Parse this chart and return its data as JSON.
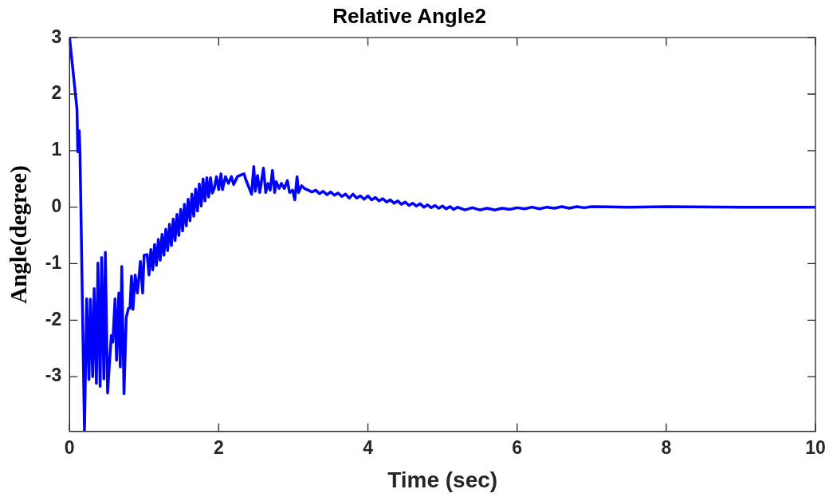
{
  "chart_data": {
    "type": "line",
    "title": "Relative Angle2",
    "xlabel": "Time (sec)",
    "ylabel": "Angle(degree)",
    "xlim": [
      0,
      10
    ],
    "ylim": [
      -3.97,
      3
    ],
    "xticks": [
      0,
      2,
      4,
      6,
      8,
      10
    ],
    "yticks": [
      -3,
      -2,
      -1,
      0,
      1,
      2,
      3
    ],
    "grid": false,
    "legend": false,
    "marker": "none",
    "line_style": "solid",
    "series": [
      {
        "color": "#0000ff",
        "x": [
          0,
          0.1,
          0.11,
          0.13,
          0.14,
          0.2,
          0.23,
          0.26,
          0.28,
          0.31,
          0.33,
          0.36,
          0.38,
          0.41,
          0.43,
          0.46,
          0.48,
          0.51,
          0.56,
          0.58,
          0.61,
          0.63,
          0.66,
          0.68,
          0.7,
          0.73,
          0.76,
          0.79,
          0.81,
          0.83,
          0.85,
          0.88,
          0.91,
          0.95,
          0.98,
          1.0,
          1.04,
          1.065,
          1.09,
          1.115,
          1.14,
          1.165,
          1.19,
          1.215,
          1.24,
          1.265,
          1.29,
          1.315,
          1.34,
          1.365,
          1.39,
          1.415,
          1.44,
          1.465,
          1.49,
          1.515,
          1.54,
          1.565,
          1.59,
          1.615,
          1.64,
          1.665,
          1.69,
          1.715,
          1.74,
          1.765,
          1.79,
          1.815,
          1.84,
          1.865,
          1.89,
          1.915,
          1.94,
          1.97,
          2.0,
          2.03,
          2.05,
          2.09,
          2.13,
          2.17,
          2.2,
          2.25,
          2.28,
          2.34,
          2.36,
          2.44,
          2.47,
          2.49,
          2.52,
          2.55,
          2.6,
          2.63,
          2.66,
          2.69,
          2.72,
          2.75,
          2.77,
          2.81,
          2.84,
          2.88,
          2.92,
          2.95,
          2.99,
          3.02,
          3.05,
          3.07,
          3.11,
          3.15,
          3.2,
          3.25,
          3.3,
          3.35,
          3.4,
          3.45,
          3.5,
          3.55,
          3.6,
          3.65,
          3.7,
          3.75,
          3.8,
          3.85,
          3.9,
          3.95,
          4.0,
          4.05,
          4.1,
          4.15,
          4.2,
          4.25,
          4.3,
          4.35,
          4.4,
          4.45,
          4.5,
          4.55,
          4.6,
          4.65,
          4.7,
          4.75,
          4.8,
          4.85,
          4.9,
          4.95,
          5.0,
          5.05,
          5.1,
          5.15,
          5.2,
          5.3,
          5.4,
          5.5,
          5.6,
          5.7,
          5.8,
          5.9,
          6.0,
          6.1,
          6.2,
          6.3,
          6.4,
          6.5,
          6.6,
          6.7,
          6.8,
          6.9,
          7.0,
          7.5,
          8.0,
          9.0,
          10.0
        ],
        "values": [
          3.0,
          1.73,
          0.98,
          1.35,
          0.96,
          -3.97,
          -1.62,
          -3.05,
          -1.63,
          -3.0,
          -1.44,
          -3.12,
          -0.99,
          -3.17,
          -0.89,
          -3.04,
          -0.8,
          -3.29,
          -2.27,
          -2.39,
          -1.62,
          -2.71,
          -1.52,
          -2.83,
          -1.05,
          -3.3,
          -1.95,
          -1.79,
          -1.79,
          -1.22,
          -1.81,
          -1.2,
          -1.52,
          -0.96,
          -1.52,
          -0.85,
          -0.84,
          -1.2,
          -0.75,
          -1.11,
          -0.66,
          -1.03,
          -0.57,
          -0.94,
          -0.48,
          -0.85,
          -0.39,
          -0.77,
          -0.3,
          -0.68,
          -0.21,
          -0.59,
          -0.13,
          -0.5,
          -0.04,
          -0.42,
          0.05,
          -0.33,
          0.14,
          -0.24,
          0.23,
          -0.16,
          0.32,
          -0.07,
          0.41,
          0.02,
          0.5,
          0.11,
          0.52,
          0.18,
          0.52,
          0.25,
          0.33,
          0.54,
          0.31,
          0.59,
          0.31,
          0.54,
          0.42,
          0.54,
          0.4,
          0.54,
          0.56,
          0.59,
          0.5,
          0.23,
          0.72,
          0.28,
          0.56,
          0.26,
          0.69,
          0.26,
          0.42,
          0.3,
          0.65,
          0.26,
          0.45,
          0.33,
          0.42,
          0.33,
          0.47,
          0.26,
          0.3,
          0.13,
          0.54,
          0.26,
          0.38,
          0.33,
          0.3,
          0.27,
          0.3,
          0.24,
          0.28,
          0.22,
          0.27,
          0.21,
          0.25,
          0.19,
          0.23,
          0.16,
          0.23,
          0.16,
          0.2,
          0.14,
          0.2,
          0.13,
          0.17,
          0.11,
          0.15,
          0.09,
          0.13,
          0.07,
          0.11,
          0.05,
          0.09,
          0.03,
          0.07,
          0.02,
          0.06,
          0.0,
          0.04,
          -0.01,
          0.03,
          -0.02,
          0.02,
          -0.03,
          0.01,
          -0.04,
          0.0,
          -0.05,
          -0.01,
          -0.05,
          -0.02,
          -0.05,
          -0.02,
          -0.04,
          -0.01,
          -0.03,
          0.0,
          -0.03,
          0.0,
          -0.02,
          0.01,
          -0.02,
          0.01,
          -0.01,
          0.01,
          0.0,
          0.01,
          0.0,
          0.0
        ]
      }
    ]
  }
}
